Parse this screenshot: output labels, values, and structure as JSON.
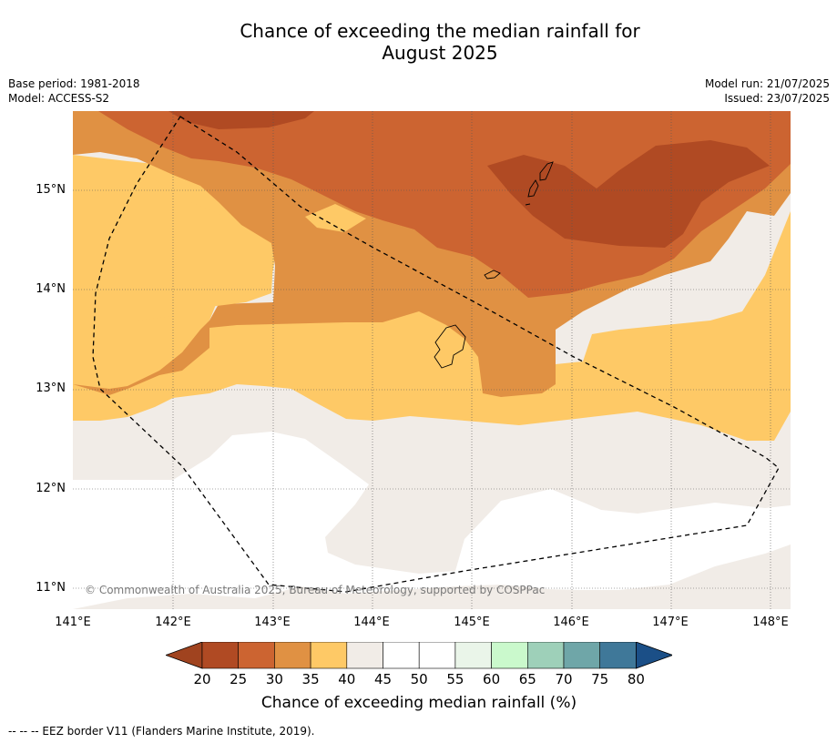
{
  "title": {
    "line1": "Chance of exceeding the median rainfall for",
    "line2": "August 2025"
  },
  "meta_left": {
    "base_period": "Base period: 1981-2018",
    "model": "Model: ACCESS-S2"
  },
  "meta_right": {
    "model_run": "Model run: 21/07/2025",
    "issued": "Issued: 23/07/2025"
  },
  "map": {
    "lat_labels": [
      "15°N",
      "14°N",
      "13°N",
      "12°N",
      "11°N"
    ],
    "lon_labels": [
      "141°E",
      "142°E",
      "143°E",
      "144°E",
      "145°E",
      "146°E",
      "147°E",
      "148°E"
    ],
    "copyright": "© Commonwealth of Australia 2025, Bureau of Meteorology, supported by COSPPac"
  },
  "colorbar": {
    "ticks": [
      "20",
      "25",
      "30",
      "35",
      "40",
      "45",
      "50",
      "55",
      "60",
      "65",
      "70",
      "75",
      "80"
    ],
    "colors": [
      "#a0431f",
      "#b04a23",
      "#cc6431",
      "#e09143",
      "#fec966",
      "#f1ece7",
      "#ffffff",
      "#ffffff",
      "#eaf5e9",
      "#caf9cc",
      "#9ed0b9",
      "#6fa6a8",
      "#3f7899",
      "#1b4f87"
    ],
    "title": "Chance of exceeding median rainfall (%)"
  },
  "footnote": "--  --  -- EEZ border V11 (Flanders Marine Institute, 2019)."
}
